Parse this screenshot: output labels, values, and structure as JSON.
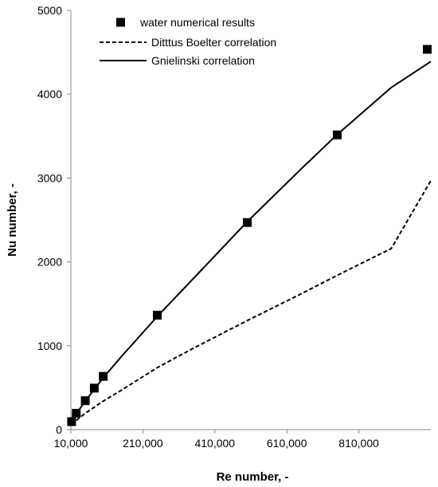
{
  "chart_data": {
    "type": "scatter",
    "xlabel": "Re number, -",
    "ylabel": "Nu number, -",
    "xlim": [
      10000,
      1010000
    ],
    "ylim": [
      0,
      5000
    ],
    "x_ticks": [
      10000,
      210000,
      410000,
      610000,
      810000
    ],
    "x_tick_labels": [
      "10,000",
      "210,000",
      "410,000",
      "610,000",
      "810,000"
    ],
    "y_ticks": [
      0,
      1000,
      2000,
      3000,
      4000,
      5000
    ],
    "y_tick_labels": [
      "0",
      "1000",
      "2000",
      "3000",
      "4000",
      "5000"
    ],
    "grid": false,
    "legend_position": "top-left",
    "series": [
      {
        "name": "water numerical results",
        "style": "markers",
        "marker": "square",
        "color": "#000000",
        "x": [
          12000,
          25000,
          50000,
          75000,
          100000,
          250000,
          500000,
          750000,
          1000000
        ],
        "y": [
          95,
          195,
          345,
          495,
          635,
          1365,
          2470,
          3515,
          4535
        ]
      },
      {
        "name": "Ditttus Boelter correlation",
        "style": "dashed-line",
        "color": "#000000",
        "x": [
          12000,
          25000,
          50000,
          100000,
          150000,
          250000,
          350000,
          500000,
          650000,
          750000,
          900000,
          1010000
        ],
        "y": [
          60,
          110,
          195,
          340,
          470,
          740,
          970,
          1300,
          1620,
          1840,
          2160,
          2970
        ]
      },
      {
        "name": "Gnielinski correlation",
        "style": "solid-line",
        "color": "#000000",
        "x": [
          12000,
          25000,
          50000,
          100000,
          150000,
          250000,
          350000,
          500000,
          650000,
          750000,
          900000,
          1010000
        ],
        "y": [
          90,
          190,
          340,
          620,
          870,
          1350,
          1800,
          2480,
          3110,
          3520,
          4080,
          4390
        ]
      }
    ]
  }
}
